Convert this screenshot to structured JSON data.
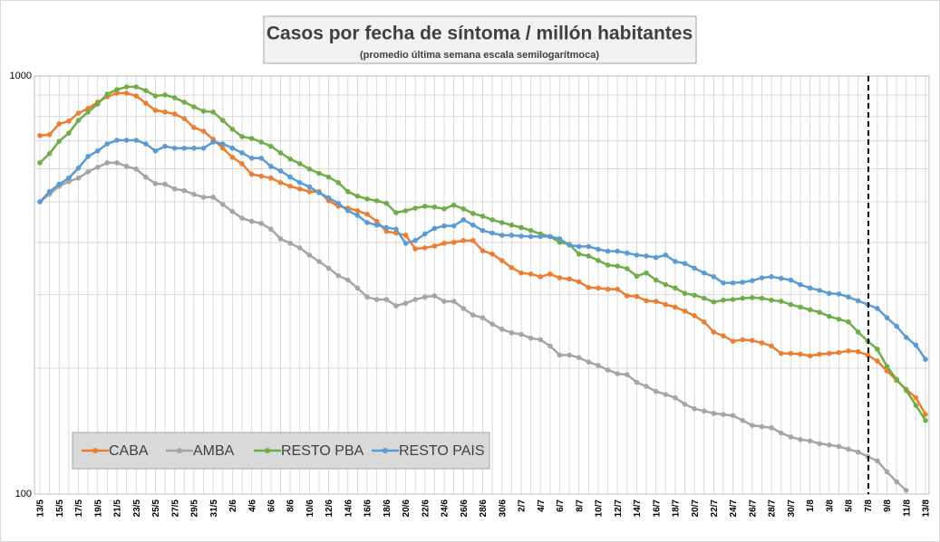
{
  "chart_data": {
    "type": "line",
    "title": "Casos por fecha de síntoma / millón habitantes",
    "subtitle": "(promedio última semana escala semilogarítmoca)",
    "categories": [
      "13/5",
      null,
      "15/5",
      null,
      "17/5",
      null,
      "19/5",
      null,
      "21/5",
      null,
      "23/5",
      null,
      "25/5",
      null,
      "27/5",
      null,
      "29/5",
      null,
      "31/5",
      null,
      "2/6",
      null,
      "4/6",
      null,
      "6/6",
      null,
      "8/6",
      null,
      "10/6",
      null,
      "12/6",
      null,
      "14/6",
      null,
      "16/6",
      null,
      "18/6",
      null,
      "20/6",
      null,
      "22/6",
      null,
      "24/6",
      null,
      "26/6",
      null,
      "28/6",
      null,
      "30/6",
      null,
      "2/7",
      null,
      "4/7",
      null,
      "6/7",
      null,
      "8/7",
      null,
      "10/7",
      null,
      "12/7",
      null,
      "14/7",
      null,
      "16/7",
      null,
      "18/7",
      null,
      "20/7",
      null,
      "22/7",
      null,
      "24/7",
      null,
      "26/7",
      null,
      "28/7",
      null,
      "30/7",
      null,
      "1/8",
      null,
      "3/8",
      null,
      "5/8",
      null,
      "7/8",
      null,
      "9/8",
      null,
      "11/8",
      null,
      "13/8"
    ],
    "series": [
      {
        "name": "CABA",
        "color": "#ed7d31",
        "values": [
          720,
          724,
          768,
          780,
          815,
          836,
          866,
          892,
          910,
          910,
          896,
          861,
          828,
          820,
          811,
          791,
          753,
          738,
          706,
          672,
          639,
          617,
          582,
          576,
          570,
          556,
          545,
          537,
          529,
          529,
          503,
          488,
          483,
          476,
          467,
          449,
          425,
          421,
          416,
          386,
          388,
          392,
          398,
          400,
          404,
          404,
          382,
          375,
          362,
          348,
          338,
          336,
          331,
          336,
          329,
          327,
          322,
          312,
          311,
          309,
          309,
          298,
          297,
          290,
          289,
          284,
          280,
          274,
          267,
          258,
          244,
          239,
          232,
          234,
          233,
          230,
          226,
          217,
          217,
          216,
          214,
          216,
          217,
          218,
          220,
          219,
          215,
          208,
          197,
          187,
          178,
          170,
          155
        ]
      },
      {
        "name": "AMBA",
        "color": "#a5a5a5",
        "values": [
          500,
          521,
          545,
          559,
          570,
          590,
          605,
          620,
          620,
          608,
          599,
          573,
          553,
          551,
          537,
          532,
          521,
          513,
          513,
          493,
          474,
          457,
          449,
          444,
          430,
          408,
          398,
          388,
          373,
          360,
          347,
          333,
          325,
          311,
          296,
          292,
          292,
          282,
          286,
          292,
          296,
          298,
          289,
          289,
          278,
          268,
          264,
          255,
          248,
          243,
          241,
          236,
          234,
          226,
          215,
          215,
          212,
          207,
          203,
          198,
          194,
          193,
          185,
          181,
          176,
          173,
          170,
          164,
          160,
          158,
          156,
          155,
          154,
          150,
          146,
          145,
          144,
          140,
          137,
          135,
          134,
          132,
          131,
          130,
          128,
          126,
          123,
          120,
          113,
          107,
          102,
          null,
          null
        ]
      },
      {
        "name": "RESTO PBA",
        "color": "#70ad47",
        "values": [
          620,
          652,
          698,
          730,
          783,
          820,
          857,
          905,
          928,
          942,
          942,
          923,
          896,
          901,
          887,
          866,
          844,
          824,
          820,
          783,
          746,
          716,
          709,
          695,
          679,
          655,
          633,
          617,
          599,
          585,
          573,
          556,
          529,
          516,
          508,
          503,
          496,
          471,
          476,
          483,
          488,
          486,
          481,
          491,
          481,
          469,
          462,
          453,
          446,
          440,
          434,
          427,
          419,
          413,
          400,
          396,
          375,
          371,
          362,
          353,
          351,
          346,
          332,
          338,
          325,
          317,
          311,
          302,
          299,
          294,
          288,
          291,
          292,
          294,
          295,
          294,
          291,
          289,
          284,
          280,
          276,
          272,
          266,
          262,
          258,
          244,
          232,
          222,
          202,
          188,
          177,
          163,
          150
        ]
      },
      {
        "name": "RESTO PAIS",
        "color": "#5b9bd5",
        "values": [
          500,
          529,
          551,
          570,
          602,
          642,
          662,
          688,
          702,
          702,
          702,
          688,
          662,
          679,
          672,
          672,
          672,
          672,
          695,
          688,
          672,
          655,
          636,
          636,
          608,
          593,
          573,
          556,
          543,
          526,
          511,
          496,
          476,
          464,
          446,
          440,
          434,
          430,
          398,
          404,
          419,
          432,
          438,
          438,
          453,
          440,
          427,
          421,
          416,
          416,
          414,
          413,
          413,
          413,
          408,
          394,
          391,
          391,
          385,
          381,
          381,
          377,
          373,
          371,
          368,
          373,
          360,
          356,
          347,
          338,
          331,
          320,
          320,
          321,
          324,
          329,
          331,
          328,
          325,
          317,
          311,
          307,
          302,
          301,
          296,
          290,
          284,
          278,
          264,
          252,
          237,
          227,
          210
        ]
      }
    ],
    "ylim": [
      100,
      1000
    ],
    "yticks": [
      100,
      1000
    ],
    "log_scale": true,
    "grid": true,
    "minor_grid": true,
    "legend": "lower left"
  }
}
